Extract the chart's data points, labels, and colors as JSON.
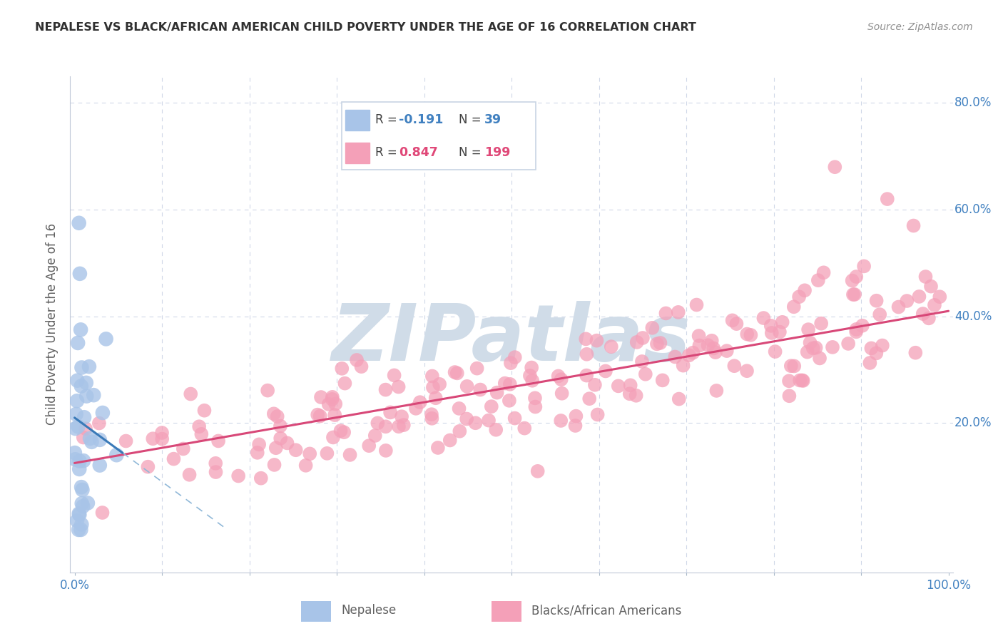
{
  "title": "NEPALESE VS BLACK/AFRICAN AMERICAN CHILD POVERTY UNDER THE AGE OF 16 CORRELATION CHART",
  "source": "Source: ZipAtlas.com",
  "ylabel": "Child Poverty Under the Age of 16",
  "nepalese_R": -0.191,
  "nepalese_N": 39,
  "black_R": 0.847,
  "black_N": 199,
  "nepalese_color": "#a8c4e8",
  "black_color": "#f4a0b8",
  "nepalese_line_color": "#3a7ab8",
  "black_line_color": "#d84878",
  "nepalese_dash_color": "#90b8d8",
  "background_color": "#ffffff",
  "grid_color": "#d0d8e8",
  "title_color": "#303030",
  "source_color": "#909090",
  "axis_label_color": "#606060",
  "tick_color": "#4080c0",
  "legend_border_color": "#c8d4e4",
  "watermark_color": "#d0dce8",
  "watermark_text": "ZIPatlas",
  "xlim": [
    -0.005,
    1.005
  ],
  "ylim": [
    -0.08,
    0.85
  ],
  "black_slope": 0.285,
  "black_intercept": 0.125,
  "nep_slope": -1.2,
  "nep_intercept": 0.21
}
